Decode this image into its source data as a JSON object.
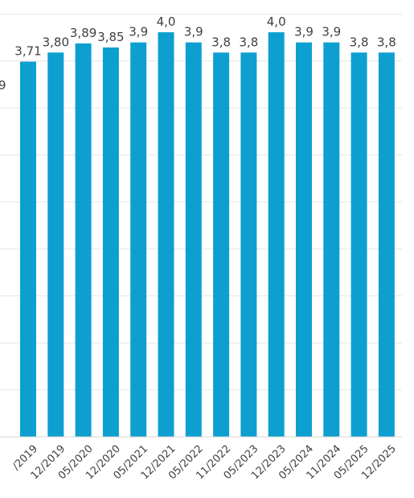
{
  "chart_data": {
    "type": "bar",
    "title": "",
    "xlabel": "",
    "ylabel": "",
    "ylim": [
      0,
      4.2
    ],
    "grid": true,
    "legend": "none",
    "categories": [
      "/2019",
      "12/2019",
      "05/2020",
      "12/2020",
      "05/2021",
      "12/2021",
      "05/2022",
      "11/2022",
      "05/2023",
      "12/2023",
      "05/2024",
      "11/2024",
      "05/2025",
      "12/2025"
    ],
    "values": [
      3.71,
      3.8,
      3.89,
      3.85,
      3.9,
      4.0,
      3.9,
      3.8,
      3.8,
      4.0,
      3.9,
      3.9,
      3.8,
      3.8
    ],
    "data_labels": [
      "3,71",
      "3,80",
      "3,89",
      "3,85",
      "3,9",
      "4,0",
      "3,9",
      "3,8",
      "3,8",
      "4,0",
      "3,9",
      "3,9",
      "3,8",
      "3,8"
    ],
    "cropped_label": "9",
    "bar_color": "#0e9fd1",
    "grid_color": "#e6e6e6",
    "text_color": "#404040"
  }
}
